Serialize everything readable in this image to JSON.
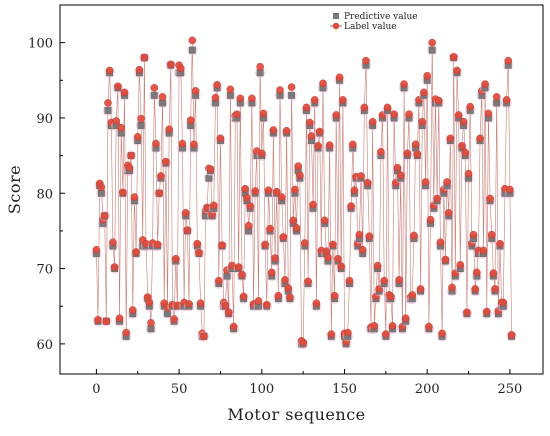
{
  "chart_data": {
    "type": "line",
    "title": "",
    "xlabel": "Motor sequence",
    "ylabel": "Score",
    "xlim": [
      -22,
      270
    ],
    "ylim": [
      56,
      105
    ],
    "xticks": [
      0,
      50,
      100,
      150,
      200,
      250
    ],
    "yticks": [
      60,
      70,
      80,
      90,
      100
    ],
    "grid": false,
    "legend": "top-center",
    "colors": {
      "predictive": "#7a7a7a",
      "label": "#e04a3a",
      "line": "#c0655a",
      "halo": "#f1b7d2"
    },
    "x": [
      0,
      1,
      2,
      3,
      4,
      5,
      6,
      7,
      8,
      9,
      10,
      11,
      12,
      13,
      14,
      15,
      16,
      17,
      18,
      19,
      20,
      21,
      22,
      23,
      24,
      25,
      26,
      27,
      28,
      29,
      30,
      31,
      32,
      33,
      34,
      35,
      36,
      37,
      38,
      39,
      40,
      41,
      42,
      43,
      44,
      45,
      46,
      47,
      48,
      49,
      50,
      51,
      52,
      53,
      54,
      55,
      56,
      57,
      58,
      59,
      60,
      61,
      62,
      63,
      64,
      65,
      66,
      67,
      68,
      69,
      70,
      71,
      72,
      73,
      74,
      75,
      76,
      77,
      78,
      79,
      80,
      81,
      82,
      83,
      84,
      85,
      86,
      87,
      88,
      89,
      90,
      91,
      92,
      93,
      94,
      95,
      96,
      97,
      98,
      99,
      100,
      101,
      102,
      103,
      104,
      105,
      106,
      107,
      108,
      109,
      110,
      111,
      112,
      113,
      114,
      115,
      116,
      117,
      118,
      119,
      120,
      121,
      122,
      123,
      124,
      125,
      126,
      127,
      128,
      129,
      130,
      131,
      132,
      133,
      134,
      135,
      136,
      137,
      138,
      139,
      140,
      141,
      142,
      143,
      144,
      145,
      146,
      147,
      148,
      149,
      150,
      151,
      152,
      153,
      154,
      155,
      156,
      157,
      158,
      159,
      160,
      161,
      162,
      163,
      164,
      165,
      166,
      167,
      168,
      169,
      170,
      171,
      172,
      173,
      174,
      175,
      176,
      177,
      178,
      179,
      180,
      181,
      182,
      183,
      184,
      185,
      186,
      187,
      188,
      189,
      190,
      191,
      192,
      193,
      194,
      195,
      196,
      197,
      198,
      199,
      200,
      201,
      202,
      203,
      204,
      205,
      206,
      207,
      208,
      209,
      210,
      211,
      212,
      213,
      214,
      215,
      216,
      217,
      218,
      219,
      220,
      221,
      222,
      223,
      224,
      225,
      226,
      227,
      228,
      229,
      230,
      231,
      232,
      233,
      234,
      235,
      236,
      237,
      238,
      239,
      240,
      241,
      242,
      243,
      244,
      245,
      246,
      247,
      248,
      249,
      250,
      251
    ],
    "series": [
      {
        "name": "Predictive value",
        "marker": "square",
        "values": [
          72,
          63,
          81,
          80,
          76,
          77,
          63,
          91,
          96,
          89,
          73,
          70,
          89,
          94,
          63,
          88,
          80,
          93,
          61,
          83,
          83,
          85,
          64,
          79,
          72,
          87,
          96,
          89,
          73,
          98,
          73,
          66,
          65,
          62,
          73,
          93,
          86,
          73,
          80,
          82,
          92,
          65,
          84,
          64,
          88,
          97,
          65,
          63,
          71,
          65,
          96,
          96,
          86,
          65,
          77,
          75,
          65,
          89,
          99,
          86,
          93,
          73,
          72,
          65,
          61,
          61,
          77,
          78,
          82,
          83,
          77,
          78,
          92,
          94,
          68,
          87,
          73,
          65,
          65,
          69,
          64,
          93,
          70,
          62,
          90,
          90,
          70,
          92,
          69,
          66,
          80,
          79,
          75,
          78,
          92,
          65,
          80,
          85,
          65,
          96,
          85,
          90,
          73,
          65,
          80,
          75,
          69,
          88,
          71,
          80,
          66,
          93,
          79,
          74,
          68,
          88,
          67,
          66,
          93,
          76,
          80,
          75,
          83,
          82,
          60,
          60,
          73,
          91,
          68,
          89,
          87,
          78,
          92,
          65,
          86,
          88,
          72,
          94,
          76,
          72,
          71,
          86,
          61,
          73,
          66,
          90,
          71,
          95,
          70,
          92,
          61,
          60,
          61,
          68,
          78,
          86,
          80,
          82,
          73,
          74,
          82,
          72,
          91,
          97,
          81,
          74,
          62,
          89,
          62,
          66,
          70,
          67,
          85,
          90,
          68,
          61,
          91,
          66,
          66,
          62,
          90,
          81,
          83,
          68,
          82,
          62,
          94,
          63,
          85,
          90,
          66,
          66,
          74,
          86,
          85,
          92,
          67,
          89,
          93,
          81,
          95,
          62,
          76,
          99,
          78,
          92,
          79,
          92,
          73,
          61,
          80,
          71,
          81,
          77,
          87,
          67,
          98,
          69,
          96,
          90,
          70,
          86,
          89,
          85,
          64,
          82,
          91,
          73,
          74,
          67,
          69,
          72,
          87,
          93,
          72,
          94,
          64,
          90,
          79,
          74,
          69,
          67,
          92,
          64,
          73,
          65,
          65,
          80,
          92,
          97,
          80,
          61
        ]
      },
      {
        "name": "Label value",
        "marker": "circle",
        "values": [
          72.5,
          63.2,
          81.3,
          80.8,
          76.5,
          77.0,
          63.0,
          92.0,
          96.3,
          89.4,
          73.5,
          70.2,
          89.6,
          94.2,
          63.4,
          88.7,
          80.1,
          93.4,
          61.5,
          83.7,
          83.4,
          85.0,
          64.5,
          79.5,
          72.2,
          87.5,
          96.4,
          89.9,
          73.8,
          98.0,
          73.3,
          66.2,
          65.5,
          62.8,
          73.4,
          94.0,
          86.6,
          73.2,
          80.0,
          82.3,
          92.8,
          65.4,
          84.2,
          64.8,
          88.5,
          97.1,
          65.2,
          63.3,
          71.3,
          65.1,
          97.0,
          96.6,
          86.6,
          65.5,
          77.4,
          75.1,
          65.3,
          89.7,
          100.3,
          86.5,
          93.6,
          73.3,
          72.1,
          65.4,
          61.4,
          61.0,
          77.7,
          78.1,
          83.3,
          83.2,
          77.2,
          78.4,
          92.7,
          94.4,
          68.4,
          87.3,
          73.1,
          65.5,
          65.1,
          69.8,
          64.2,
          93.8,
          70.4,
          62.3,
          90.3,
          90.5,
          70.2,
          92.6,
          69.2,
          66.3,
          80.6,
          79.4,
          75.7,
          78.3,
          92.6,
          65.3,
          80.3,
          85.6,
          65.7,
          96.8,
          85.3,
          90.6,
          73.2,
          65.2,
          80.4,
          75.3,
          69.5,
          88.4,
          71.4,
          80.2,
          66.4,
          93.7,
          79.5,
          74.2,
          68.5,
          88.3,
          67.4,
          66.2,
          94.1,
          76.4,
          80.5,
          75.4,
          83.6,
          82.4,
          60.4,
          60.2,
          73.4,
          91.4,
          68.3,
          89.4,
          87.6,
          78.5,
          92.4,
          65.4,
          86.3,
          88.2,
          72.4,
          94.6,
          76.4,
          72.3,
          71.5,
          86.4,
          61.3,
          73.2,
          66.4,
          90.4,
          71.3,
          95.4,
          70.3,
          92.4,
          61.4,
          60.3,
          61.5,
          68.4,
          78.3,
          86.5,
          80.4,
          82.2,
          73.4,
          74.5,
          82.3,
          72.5,
          91.4,
          97.6,
          81.4,
          74.3,
          62.2,
          89.5,
          62.4,
          66.3,
          70.4,
          67.3,
          85.5,
          90.4,
          68.4,
          61.3,
          91.4,
          66.5,
          66.3,
          62.4,
          90.5,
          81.4,
          83.4,
          68.5,
          82.4,
          62.3,
          94.5,
          63.4,
          85.3,
          90.5,
          66.2,
          66.5,
          74.4,
          86.5,
          85.2,
          92.4,
          67.3,
          89.5,
          93.4,
          81.5,
          95.6,
          62.3,
          76.5,
          100.0,
          78.4,
          92.5,
          79.3,
          92.3,
          73.5,
          61.4,
          80.5,
          71.2,
          81.5,
          77.4,
          87.3,
          67.5,
          98.1,
          69.4,
          96.3,
          90.4,
          70.5,
          86.3,
          89.5,
          85.4,
          64.2,
          82.6,
          91.5,
          73.4,
          74.5,
          67.3,
          69.5,
          72.4,
          87.3,
          93.6,
          72.4,
          94.5,
          64.3,
          90.6,
          79.3,
          74.5,
          69.4,
          67.3,
          92.8,
          64.4,
          73.3,
          65.5,
          65.5,
          80.6,
          92.4,
          97.6,
          80.5,
          61.2
        ]
      }
    ]
  }
}
